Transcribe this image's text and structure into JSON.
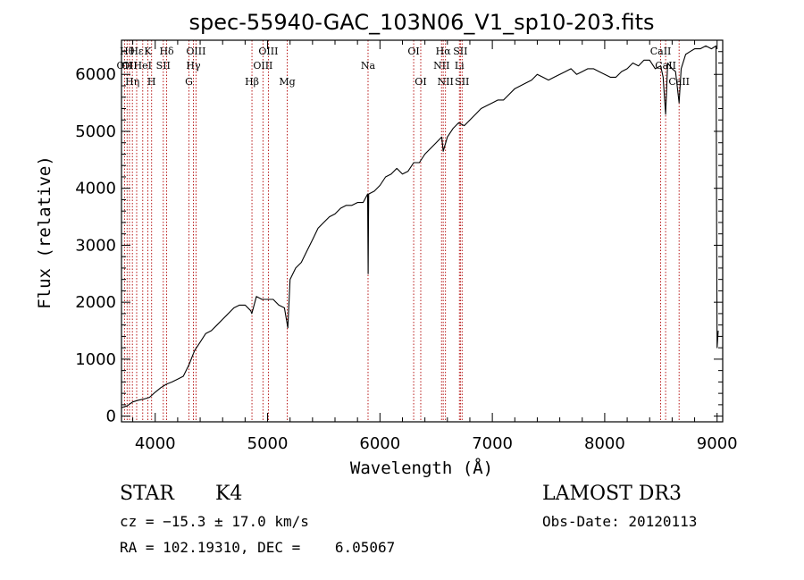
{
  "chart_data": {
    "type": "line",
    "title": "spec-55940-GAC_103N06_V1_sp10-203.fits",
    "xlabel": "Wavelength (Å)",
    "ylabel": "Flux (relative)",
    "xlim": [
      3700,
      9050
    ],
    "ylim": [
      -100,
      6600
    ],
    "xticks": [
      4000,
      5000,
      6000,
      7000,
      8000,
      9000
    ],
    "yticks": [
      0,
      1000,
      2000,
      3000,
      4000,
      5000,
      6000
    ],
    "series": [
      {
        "name": "flux",
        "x": [
          3700,
          3750,
          3800,
          3850,
          3900,
          3950,
          4000,
          4050,
          4100,
          4150,
          4200,
          4250,
          4300,
          4350,
          4400,
          4450,
          4500,
          4550,
          4600,
          4650,
          4700,
          4750,
          4800,
          4850,
          4860,
          4900,
          4950,
          5000,
          5050,
          5100,
          5150,
          5180,
          5200,
          5250,
          5300,
          5350,
          5400,
          5450,
          5500,
          5550,
          5600,
          5650,
          5700,
          5750,
          5800,
          5850,
          5890,
          5895,
          5900,
          5950,
          6000,
          6050,
          6100,
          6150,
          6200,
          6250,
          6300,
          6350,
          6400,
          6450,
          6500,
          6550,
          6563,
          6600,
          6650,
          6700,
          6750,
          6800,
          6850,
          6900,
          6950,
          7000,
          7050,
          7100,
          7150,
          7200,
          7250,
          7300,
          7350,
          7400,
          7450,
          7500,
          7550,
          7600,
          7650,
          7700,
          7750,
          7800,
          7850,
          7900,
          7950,
          8000,
          8050,
          8100,
          8150,
          8200,
          8250,
          8300,
          8350,
          8400,
          8450,
          8498,
          8520,
          8542,
          8560,
          8600,
          8630,
          8662,
          8680,
          8720,
          8760,
          8800,
          8850,
          8900,
          8950,
          8990,
          9000,
          9010
        ],
        "y": [
          150,
          180,
          250,
          280,
          300,
          330,
          420,
          500,
          560,
          600,
          650,
          700,
          900,
          1150,
          1300,
          1450,
          1500,
          1600,
          1700,
          1800,
          1900,
          1950,
          1950,
          1850,
          1800,
          2100,
          2050,
          2050,
          2050,
          1950,
          1900,
          1550,
          2400,
          2600,
          2700,
          2900,
          3100,
          3300,
          3400,
          3500,
          3550,
          3650,
          3700,
          3700,
          3750,
          3750,
          3900,
          2500,
          3900,
          3950,
          4050,
          4200,
          4250,
          4350,
          4250,
          4300,
          4450,
          4450,
          4600,
          4700,
          4800,
          4900,
          4650,
          4900,
          5050,
          5150,
          5100,
          5200,
          5300,
          5400,
          5450,
          5500,
          5550,
          5550,
          5650,
          5750,
          5800,
          5850,
          5900,
          6000,
          5950,
          5900,
          5950,
          6000,
          6050,
          6100,
          6000,
          6050,
          6100,
          6100,
          6050,
          6000,
          5950,
          5950,
          6050,
          6100,
          6200,
          6150,
          6250,
          6250,
          6100,
          6150,
          5950,
          5300,
          6200,
          6100,
          6050,
          5500,
          6100,
          6350,
          6400,
          6450,
          6450,
          6500,
          6450,
          6500,
          1200,
          1500
        ]
      }
    ],
    "line_labels": [
      {
        "wavelength": 3727,
        "row": 2,
        "label": "OII"
      },
      {
        "wavelength": 3750,
        "row": 1,
        "label": "Hθ"
      },
      {
        "wavelength": 3771,
        "row": 2,
        "label": "OII"
      },
      {
        "wavelength": 3797,
        "row": 3,
        "label": "Hη"
      },
      {
        "wavelength": 3835,
        "row": 1,
        "label": "Hε"
      },
      {
        "wavelength": 3889,
        "row": 2,
        "label": "HeI"
      },
      {
        "wavelength": 3934,
        "row": 1,
        "label": "K"
      },
      {
        "wavelength": 3968,
        "row": 3,
        "label": "H"
      },
      {
        "wavelength": 4072,
        "row": 2,
        "label": "SII"
      },
      {
        "wavelength": 4102,
        "row": 1,
        "label": "Hδ"
      },
      {
        "wavelength": 4300,
        "row": 3,
        "label": "G"
      },
      {
        "wavelength": 4340,
        "row": 2,
        "label": "Hγ"
      },
      {
        "wavelength": 4363,
        "row": 1,
        "label": "OIII"
      },
      {
        "wavelength": 4861,
        "row": 3,
        "label": "Hβ"
      },
      {
        "wavelength": 4959,
        "row": 2,
        "label": "OIII"
      },
      {
        "wavelength": 5007,
        "row": 1,
        "label": "OIII"
      },
      {
        "wavelength": 5175,
        "row": 3,
        "label": "Mg"
      },
      {
        "wavelength": 5894,
        "row": 2,
        "label": "Na"
      },
      {
        "wavelength": 6300,
        "row": 1,
        "label": "OI"
      },
      {
        "wavelength": 6363,
        "row": 3,
        "label": "OI"
      },
      {
        "wavelength": 6548,
        "row": 2,
        "label": "NII"
      },
      {
        "wavelength": 6563,
        "row": 1,
        "label": "Hα"
      },
      {
        "wavelength": 6583,
        "row": 3,
        "label": "NII"
      },
      {
        "wavelength": 6707,
        "row": 2,
        "label": "Li"
      },
      {
        "wavelength": 6716,
        "row": 1,
        "label": "SII"
      },
      {
        "wavelength": 6731,
        "row": 3,
        "label": "SII"
      },
      {
        "wavelength": 8498,
        "row": 1,
        "label": "CaII"
      },
      {
        "wavelength": 8542,
        "row": 2,
        "label": "CaII"
      },
      {
        "wavelength": 8662,
        "row": 3,
        "label": "CaII"
      }
    ]
  },
  "info": {
    "object_class": "STAR",
    "subclass": "K4",
    "survey": "LAMOST DR3",
    "redshift": "cz = −15.3 ± 17.0 km/s",
    "obs_date": "Obs-Date: 20120113",
    "coords": "RA = 102.19310, DEC =    6.05067"
  },
  "colors": {
    "line_marker": "#b00000",
    "spectrum": "#000000",
    "axes": "#000000"
  }
}
